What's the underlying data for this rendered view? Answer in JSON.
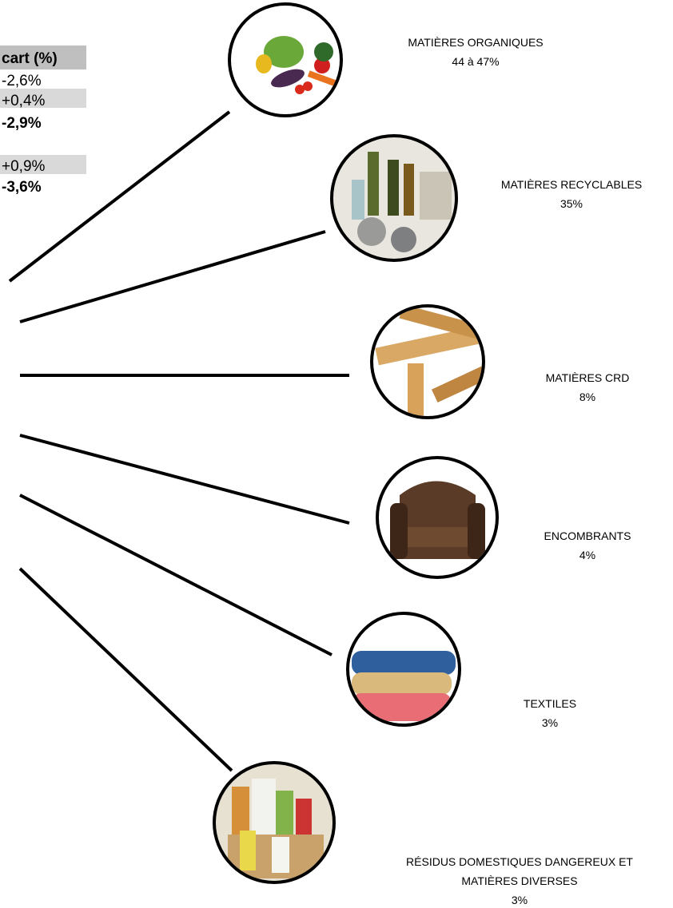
{
  "table": {
    "header": "cart (%)",
    "rows": [
      "-2,6%",
      "+0,4%",
      "-2,9%",
      "+0,9%",
      "-3,6%"
    ]
  },
  "items": [
    {
      "label": "MATIÈRES ORGANIQUES",
      "share": "44 à 47%"
    },
    {
      "label": "MATIÈRES RECYCLABLES",
      "share": "35%"
    },
    {
      "label": "MATIÈRES CRD",
      "share": "8%"
    },
    {
      "label": "ENCOMBRANTS",
      "share": "4%"
    },
    {
      "label": "TEXTILES",
      "share": "3%"
    },
    {
      "label": "RÉSIDUS DOMESTIQUES DANGEREUX ET",
      "label2": "MATIÈRES DIVERSES",
      "share": "3%"
    }
  ]
}
